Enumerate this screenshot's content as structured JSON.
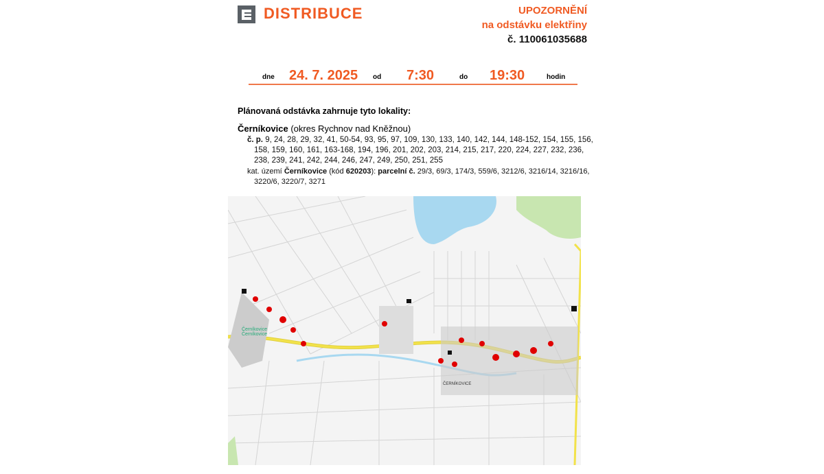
{
  "header": {
    "brand": "DISTRIBUCE",
    "notice_title": "UPOZORNĚNÍ",
    "notice_subtitle": "na odstávku elektřiny",
    "notice_number": "č. 110061035688"
  },
  "schedule": {
    "date_label": "dne",
    "date": "24. 7. 2025",
    "from_label": "od",
    "from": "7:30",
    "to_label": "do",
    "to": "19:30",
    "unit": "hodin"
  },
  "body": {
    "heading": "Plánovaná odstávka zahrnuje tyto lokality:",
    "locality": "Černíkovice",
    "district": "(okres Rychnov nad Kněžnou)",
    "cp_label": "č. p.",
    "cp_list": "9, 24, 28, 29, 32, 41, 50-54, 93, 95, 97, 109, 130, 133, 140, 142, 144, 148-152, 154, 155, 156, 158, 159, 160, 161, 163-168, 194, 196, 201, 202, 203, 214, 215, 217, 220, 224, 227, 232, 236, 238, 239, 241, 242, 244, 246, 247, 249, 250, 251, 255",
    "kat_prefix": "kat. území",
    "kat_name": "Černíkovice",
    "kod_prefix": "(kód",
    "kod": "620203",
    "kod_suffix": "):",
    "parcel_label": "parcelní č.",
    "parcel_list": "29/3, 69/3, 174/3, 559/6, 3212/6, 3216/14, 3216/16, 3220/6, 3220/7, 3271"
  },
  "map": {
    "labels": [
      "Černíkovice",
      "Černíkovice",
      "ČERNÍKOVICE"
    ],
    "colors": {
      "water": "#a8d8f0",
      "green": "#c8e6b0",
      "road": "#f2e24a",
      "marker": "#e00000"
    }
  }
}
